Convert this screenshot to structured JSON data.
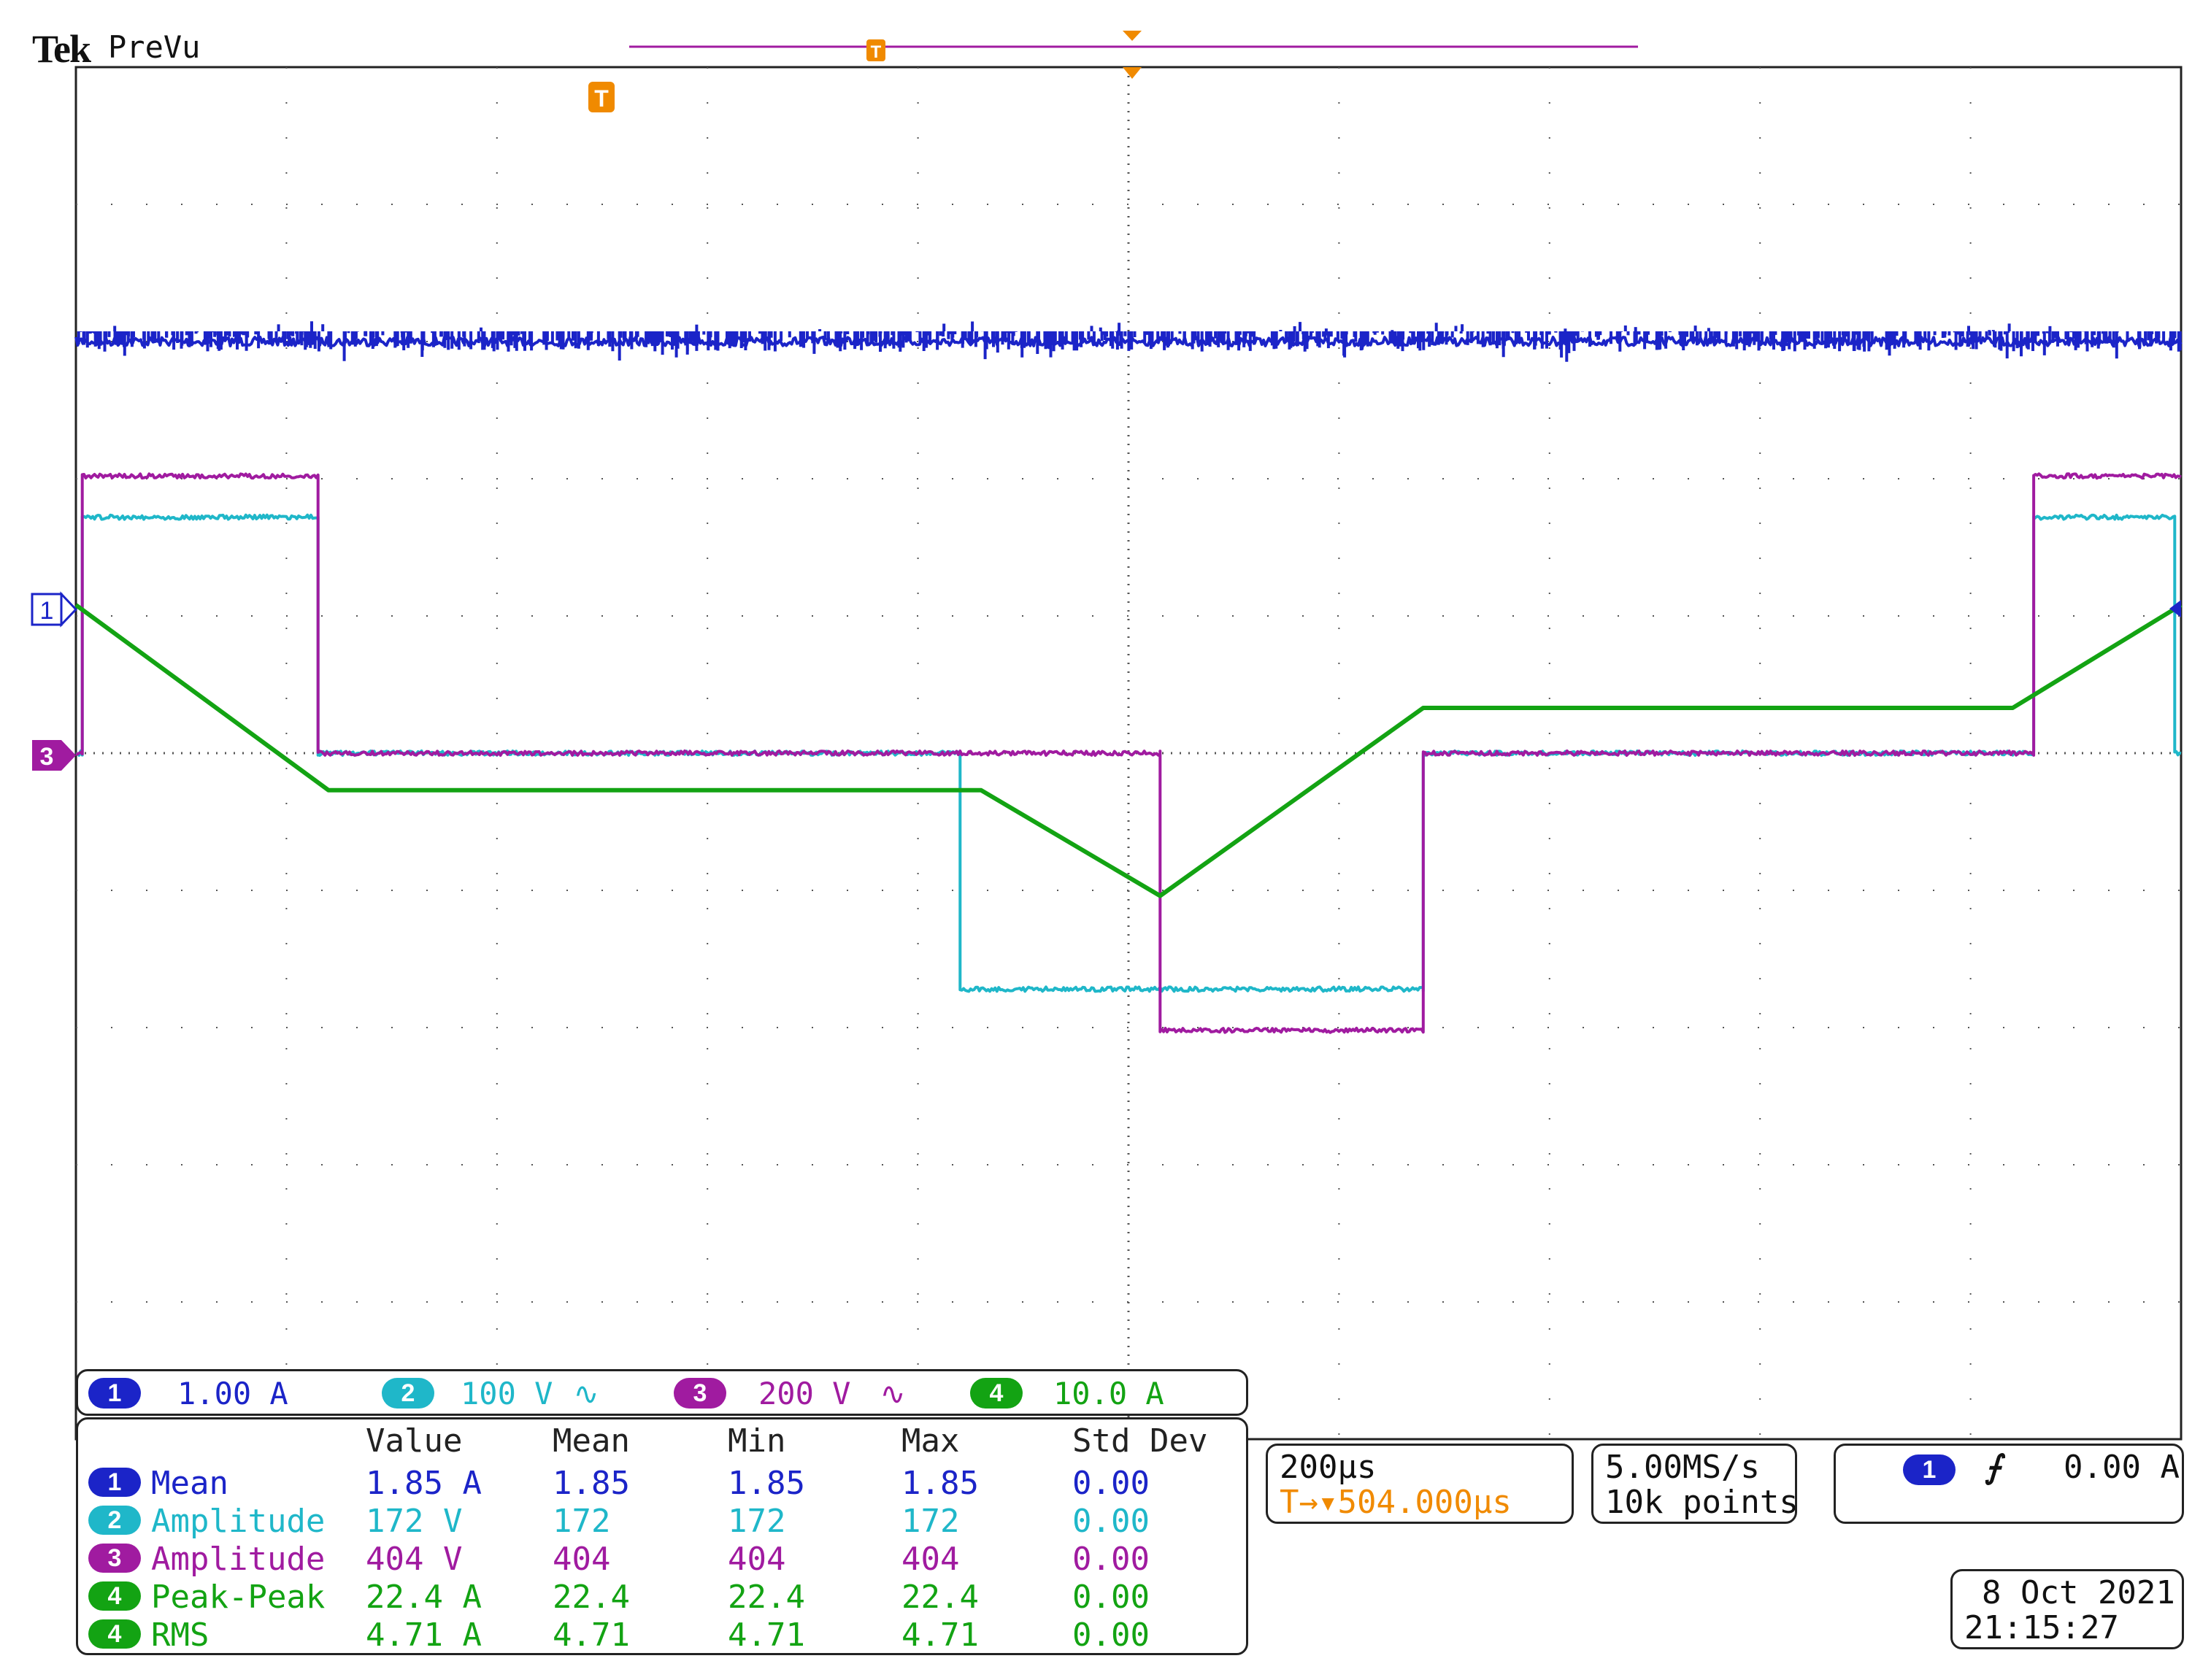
{
  "header": {
    "brand": "Tek",
    "status": "PreVu"
  },
  "markers": {
    "trigger_position_label": "T",
    "channel_markers": [
      "1",
      "3"
    ]
  },
  "colors": {
    "ch1": "#1b24c8",
    "ch2": "#1fb7c9",
    "ch3": "#a01ba0",
    "ch4": "#13a313",
    "trigger": "#f08a00",
    "graticule": "#555555",
    "frame": "#222222"
  },
  "channels": [
    {
      "number": "1",
      "scale": "1.00 A",
      "coupling_icon": "",
      "color": "#1b24c8"
    },
    {
      "number": "2",
      "scale": "100 V",
      "coupling_icon": "∿",
      "color": "#1fb7c9"
    },
    {
      "number": "3",
      "scale": "200 V",
      "coupling_icon": "∿",
      "color": "#a01ba0"
    },
    {
      "number": "4",
      "scale": "10.0 A",
      "coupling_icon": "",
      "color": "#13a313"
    }
  ],
  "measurements": {
    "headers": [
      "Value",
      "Mean",
      "Min",
      "Max",
      "Std Dev"
    ],
    "rows": [
      {
        "channel": "1",
        "name": "Mean",
        "value": "1.85 A",
        "mean": "1.85",
        "min": "1.85",
        "max": "1.85",
        "std": "0.00",
        "color": "#1b24c8"
      },
      {
        "channel": "2",
        "name": "Amplitude",
        "value": "172 V",
        "mean": "172",
        "min": "172",
        "max": "172",
        "std": "0.00",
        "color": "#1fb7c9"
      },
      {
        "channel": "3",
        "name": "Amplitude",
        "value": "404 V",
        "mean": "404",
        "min": "404",
        "max": "404",
        "std": "0.00",
        "color": "#a01ba0"
      },
      {
        "channel": "4",
        "name": "Peak-Peak",
        "value": "22.4 A",
        "mean": "22.4",
        "min": "22.4",
        "max": "22.4",
        "std": "0.00",
        "color": "#13a313"
      },
      {
        "channel": "4",
        "name": "RMS",
        "value": "4.71 A",
        "mean": "4.71",
        "min": "4.71",
        "max": "4.71",
        "std": "0.00",
        "color": "#13a313"
      }
    ]
  },
  "timebase": {
    "scale": "200µs",
    "position": "504.000µs",
    "position_prefix": "T→▾"
  },
  "acquisition": {
    "rate": "5.00MS/s",
    "record": "10k points"
  },
  "trigger": {
    "source": "1",
    "slope_icon": "rising-edge-icon",
    "slope_glyph": "⨍",
    "level": "0.00 A"
  },
  "datetime": {
    "date": "8 Oct  2021",
    "time": "21:15:27"
  },
  "chart_data": {
    "type": "line",
    "title": "",
    "xlabel": "",
    "ylabel": "",
    "x_divisions": 10,
    "y_divisions": 10,
    "xlim": [
      0,
      10
    ],
    "ylim": [
      -5,
      5
    ],
    "grid": true,
    "series": [
      {
        "name": "1",
        "color": "#1b24c8",
        "noisy": true,
        "x": [
          0,
          10
        ],
        "y": [
          3.0,
          3.0
        ]
      },
      {
        "name": "2",
        "color": "#1fb7c9",
        "noisy": true,
        "x": [
          0,
          0.03,
          0.03,
          1.15,
          1.15,
          4.2,
          4.2,
          6.4,
          6.4,
          9.3,
          9.3,
          9.97,
          9.97,
          10
        ],
        "y": [
          0,
          0,
          1.72,
          1.72,
          0,
          0,
          -1.72,
          -1.72,
          0,
          0,
          1.72,
          1.72,
          0,
          0
        ]
      },
      {
        "name": "3",
        "color": "#a01ba0",
        "noisy": true,
        "x": [
          0,
          0.03,
          0.03,
          1.15,
          1.15,
          5.15,
          5.15,
          6.4,
          6.4,
          9.3,
          9.3,
          10
        ],
        "y": [
          0,
          0,
          2.02,
          2.02,
          0,
          0,
          -2.02,
          -2.02,
          0,
          0,
          2.02,
          2.02
        ]
      },
      {
        "name": "4",
        "color": "#13a313",
        "noisy": false,
        "x": [
          0,
          1.2,
          4.3,
          5.15,
          6.4,
          9.2,
          10
        ],
        "y": [
          1.08,
          -0.27,
          -0.27,
          -1.04,
          0.33,
          0.33,
          1.08
        ]
      }
    ]
  }
}
